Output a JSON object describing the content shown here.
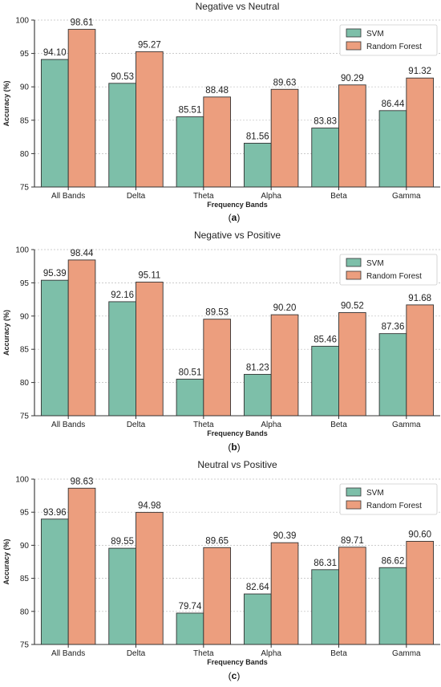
{
  "chart_data": [
    {
      "type": "bar",
      "title": "Negative vs Neutral",
      "subfigure_label": "(a)",
      "xlabel": "Frequency Bands",
      "ylabel": "Accuracy (%)",
      "ylim": [
        75,
        100
      ],
      "yticks": [
        75,
        80,
        85,
        90,
        95,
        100
      ],
      "grid": "horizontal dotted",
      "legend": "top-right",
      "categories": [
        "All Bands",
        "Delta",
        "Theta",
        "Alpha",
        "Beta",
        "Gamma"
      ],
      "series": [
        {
          "name": "SVM",
          "color": "#7dbfa9",
          "values": [
            94.1,
            90.53,
            85.51,
            81.56,
            83.83,
            86.44
          ]
        },
        {
          "name": "Random Forest",
          "color": "#ec9e7e",
          "values": [
            98.61,
            95.27,
            88.48,
            89.63,
            90.29,
            91.32
          ]
        }
      ]
    },
    {
      "type": "bar",
      "title": "Negative vs Positive",
      "subfigure_label": "(b)",
      "xlabel": "Frequency Bands",
      "ylabel": "Accuracy (%)",
      "ylim": [
        75,
        100
      ],
      "yticks": [
        75,
        80,
        85,
        90,
        95,
        100
      ],
      "grid": "horizontal dotted",
      "legend": "top-right",
      "categories": [
        "All Bands",
        "Delta",
        "Theta",
        "Alpha",
        "Beta",
        "Gamma"
      ],
      "series": [
        {
          "name": "SVM",
          "color": "#7dbfa9",
          "values": [
            95.39,
            92.16,
            80.51,
            81.23,
            85.46,
            87.36
          ]
        },
        {
          "name": "Random Forest",
          "color": "#ec9e7e",
          "values": [
            98.44,
            95.11,
            89.53,
            90.2,
            90.52,
            91.68
          ]
        }
      ]
    },
    {
      "type": "bar",
      "title": "Neutral vs Positive",
      "subfigure_label": "(c)",
      "xlabel": "Frequency Bands",
      "ylabel": "Accuracy (%)",
      "ylim": [
        75,
        100
      ],
      "yticks": [
        75,
        80,
        85,
        90,
        95,
        100
      ],
      "grid": "horizontal dotted",
      "legend": "top-right",
      "categories": [
        "All Bands",
        "Delta",
        "Theta",
        "Alpha",
        "Beta",
        "Gamma"
      ],
      "series": [
        {
          "name": "SVM",
          "color": "#7dbfa9",
          "values": [
            93.96,
            89.55,
            79.74,
            82.64,
            86.31,
            86.62
          ]
        },
        {
          "name": "Random Forest",
          "color": "#ec9e7e",
          "values": [
            98.63,
            94.98,
            89.65,
            90.39,
            89.71,
            90.6
          ]
        }
      ]
    }
  ]
}
